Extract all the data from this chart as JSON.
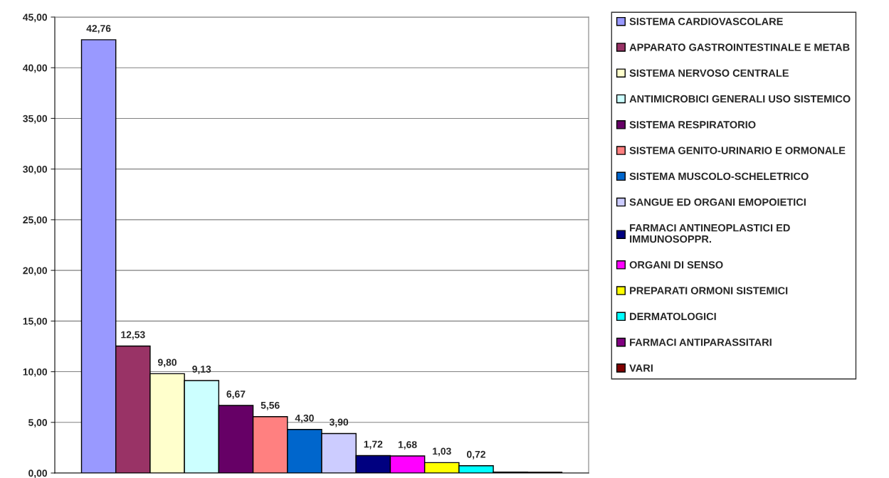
{
  "chart_data": {
    "type": "bar",
    "categories": [
      null
    ],
    "series": [
      {
        "name": "SISTEMA CARDIOVASCOLARE",
        "color": "#9999ff",
        "values": [
          42.76
        ],
        "value_labels": [
          "42,76"
        ]
      },
      {
        "name": "APPARATO GASTROINTESTINALE E METAB",
        "color": "#993366",
        "values": [
          12.53
        ],
        "value_labels": [
          "12,53"
        ]
      },
      {
        "name": "SISTEMA NERVOSO CENTRALE",
        "color": "#ffffcc",
        "values": [
          9.8
        ],
        "value_labels": [
          "9,80"
        ]
      },
      {
        "name": "ANTIMICROBICI GENERALI USO SISTEMICO",
        "color": "#ccffff",
        "values": [
          9.13
        ],
        "value_labels": [
          "9,13"
        ]
      },
      {
        "name": "SISTEMA RESPIRATORIO",
        "color": "#660066",
        "values": [
          6.67
        ],
        "value_labels": [
          "6,67"
        ]
      },
      {
        "name": "SISTEMA GENITO-URINARIO E ORMONALE",
        "color": "#ff8080",
        "values": [
          5.56
        ],
        "value_labels": [
          "5,56"
        ]
      },
      {
        "name": "SISTEMA MUSCOLO-SCHELETRICO",
        "color": "#0066cc",
        "values": [
          4.3
        ],
        "value_labels": [
          "4,30"
        ]
      },
      {
        "name": "SANGUE ED ORGANI EMOPOIETICI",
        "color": "#ccccff",
        "values": [
          3.9
        ],
        "value_labels": [
          "3,90"
        ]
      },
      {
        "name": "FARMACI ANTINEOPLASTICI ED\nIMMUNOSOPPR.",
        "color": "#000080",
        "values": [
          1.72
        ],
        "value_labels": [
          "1,72"
        ]
      },
      {
        "name": "ORGANI DI SENSO",
        "color": "#ff00ff",
        "values": [
          1.68
        ],
        "value_labels": [
          "1,68"
        ]
      },
      {
        "name": "PREPARATI ORMONI SISTEMICI",
        "color": "#ffff00",
        "values": [
          1.03
        ],
        "value_labels": [
          "1,03"
        ]
      },
      {
        "name": "DERMATOLOGICI",
        "color": "#00ffff",
        "values": [
          0.72
        ],
        "value_labels": [
          "0,72"
        ]
      },
      {
        "name": "FARMACI ANTIPARASSITARI",
        "color": "#800080",
        "values": [
          0.1
        ],
        "value_labels": [
          null
        ]
      },
      {
        "name": "VARI",
        "color": "#800000",
        "values": [
          0.08
        ],
        "value_labels": [
          null
        ]
      }
    ],
    "ylim": [
      0,
      45
    ],
    "yticks": [
      {
        "value": 0,
        "label": "0,00"
      },
      {
        "value": 5,
        "label": "5,00"
      },
      {
        "value": 10,
        "label": "10,00"
      },
      {
        "value": 15,
        "label": "15,00"
      },
      {
        "value": 20,
        "label": "20,00"
      },
      {
        "value": 25,
        "label": "25,00"
      },
      {
        "value": 30,
        "label": "30,00"
      },
      {
        "value": 35,
        "label": "35,00"
      },
      {
        "value": 40,
        "label": "40,00"
      },
      {
        "value": 45,
        "label": "45,00"
      }
    ],
    "grid": "y",
    "legend": "right",
    "tick_labels": "y"
  }
}
